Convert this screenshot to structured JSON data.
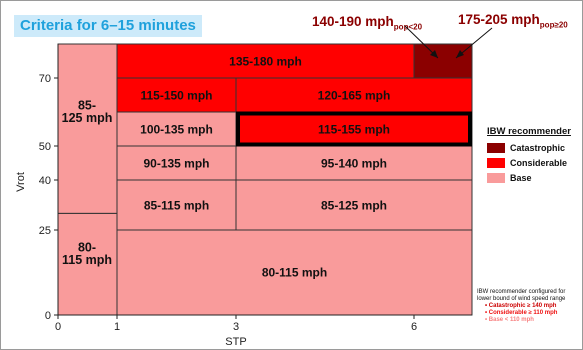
{
  "title": "Criteria for 6–15 minutes",
  "callouts": [
    {
      "main": "140-190 mph",
      "sub": "pop<20"
    },
    {
      "main": "175-205 mph",
      "sub": "pop≥20"
    }
  ],
  "colors": {
    "catastrophic": "#8b0000",
    "considerable": "#ff0000",
    "base": "#f99b9b"
  },
  "chart_data": {
    "type": "heatmap",
    "title": "Criteria for 6–15 minutes",
    "xlabel": "STP",
    "ylabel": "Vrot",
    "xlim": [
      0,
      7.5
    ],
    "ylim": [
      0,
      78
    ],
    "x_ticks": [
      0,
      1,
      3,
      6
    ],
    "y_ticks": [
      0,
      25,
      40,
      50,
      70
    ],
    "x_scale": "piecewise",
    "regions": [
      {
        "x": [
          0,
          1
        ],
        "y": [
          0,
          30
        ],
        "label": "80-\n115 mph",
        "category": "base"
      },
      {
        "x": [
          0,
          1
        ],
        "y": [
          30,
          78
        ],
        "label": "85-\n125 mph",
        "category": "base"
      },
      {
        "x": [
          1,
          7.5
        ],
        "y": [
          0,
          25
        ],
        "label": "80-115 mph",
        "category": "base"
      },
      {
        "x": [
          1,
          3
        ],
        "y": [
          25,
          40
        ],
        "label": "85-115 mph",
        "category": "base"
      },
      {
        "x": [
          3,
          7.5
        ],
        "y": [
          25,
          40
        ],
        "label": "85-125 mph",
        "category": "base"
      },
      {
        "x": [
          1,
          3
        ],
        "y": [
          40,
          50
        ],
        "label": "90-135 mph",
        "category": "base"
      },
      {
        "x": [
          3,
          7.5
        ],
        "y": [
          40,
          50
        ],
        "label": "95-140 mph",
        "category": "base"
      },
      {
        "x": [
          1,
          3
        ],
        "y": [
          50,
          60
        ],
        "label": "100-135 mph",
        "category": "base"
      },
      {
        "x": [
          3,
          7.5
        ],
        "y": [
          50,
          60
        ],
        "label": "115-155 mph",
        "category": "considerable",
        "highlight": true
      },
      {
        "x": [
          1,
          3
        ],
        "y": [
          60,
          70
        ],
        "label": "115-150 mph",
        "category": "considerable"
      },
      {
        "x": [
          3,
          7.5
        ],
        "y": [
          60,
          70
        ],
        "label": "120-165 mph",
        "category": "considerable"
      },
      {
        "x": [
          1,
          6
        ],
        "y": [
          70,
          78
        ],
        "label": "135-180 mph",
        "category": "considerable"
      },
      {
        "x": [
          6,
          7.5
        ],
        "y": [
          70,
          78
        ],
        "label": "",
        "category": "catastrophic"
      }
    ]
  },
  "legend": {
    "title": "IBW recommender",
    "items": [
      {
        "label": "Catastrophic",
        "color": "#8b0000"
      },
      {
        "label": "Considerable",
        "color": "#ff0000"
      },
      {
        "label": "Base",
        "color": "#f99b9b"
      }
    ]
  },
  "note": {
    "text": "IBW recommender configured for lower bound of wind speed range",
    "items": [
      {
        "text": "• Catastrophic ≥ 140 mph",
        "color": "#cc0000"
      },
      {
        "text": "• Considerable ≥ 110 mph",
        "color": "#ee1111"
      },
      {
        "text": "• Base        < 110 mph",
        "color": "#f78080"
      }
    ]
  }
}
